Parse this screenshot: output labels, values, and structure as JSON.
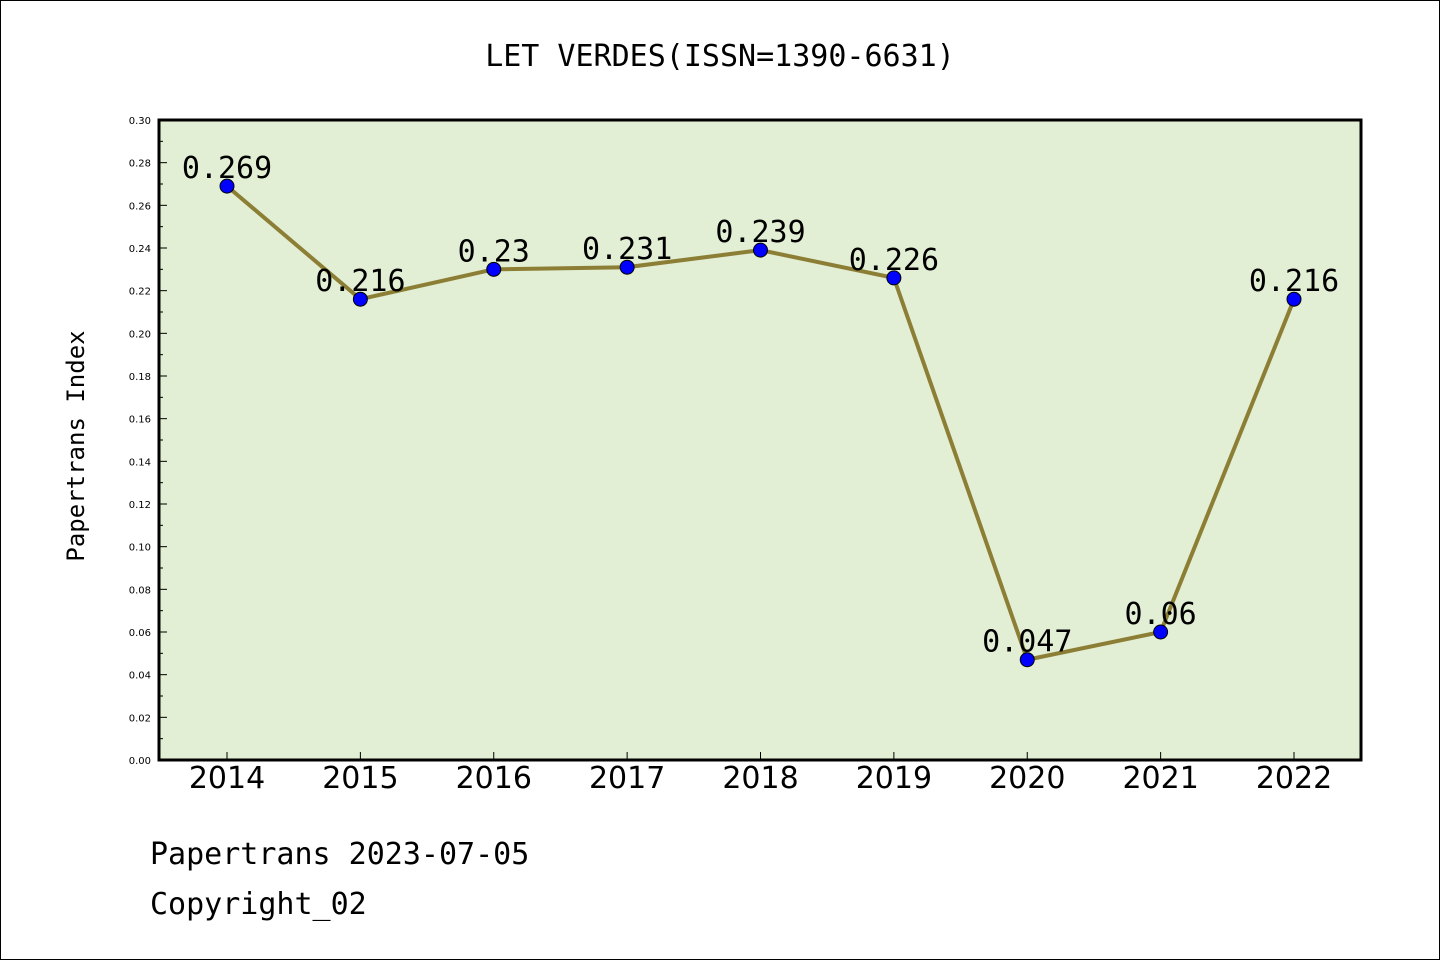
{
  "chart_data": {
    "type": "line",
    "title": "LET VERDES(ISSN=1390-6631)",
    "xlabel": "",
    "ylabel": "Papertrans Index",
    "categories": [
      "2014",
      "2015",
      "2016",
      "2017",
      "2018",
      "2019",
      "2020",
      "2021",
      "2022"
    ],
    "values": [
      0.269,
      0.216,
      0.23,
      0.231,
      0.239,
      0.226,
      0.047,
      0.06,
      0.216
    ],
    "data_labels": [
      "0.269",
      "0.216",
      "0.23",
      "0.231",
      "0.239",
      "0.226",
      "0.047",
      "0.06",
      "0.216"
    ],
    "ylim": [
      0,
      0.3
    ],
    "yticks": [
      "0.00",
      "0.02",
      "0.04",
      "0.06",
      "0.08",
      "0.10",
      "0.12",
      "0.14",
      "0.16",
      "0.18",
      "0.20",
      "0.22",
      "0.24",
      "0.26",
      "0.28",
      "0.30"
    ],
    "grid": false,
    "legend": "none",
    "colors": {
      "plot_background": "#e2efd5",
      "line": "#8c7f35",
      "marker": "#0000ff",
      "axes": "#000000"
    }
  },
  "footer": {
    "line1": "Papertrans 2023-07-05",
    "line2": "Copyright_02"
  }
}
